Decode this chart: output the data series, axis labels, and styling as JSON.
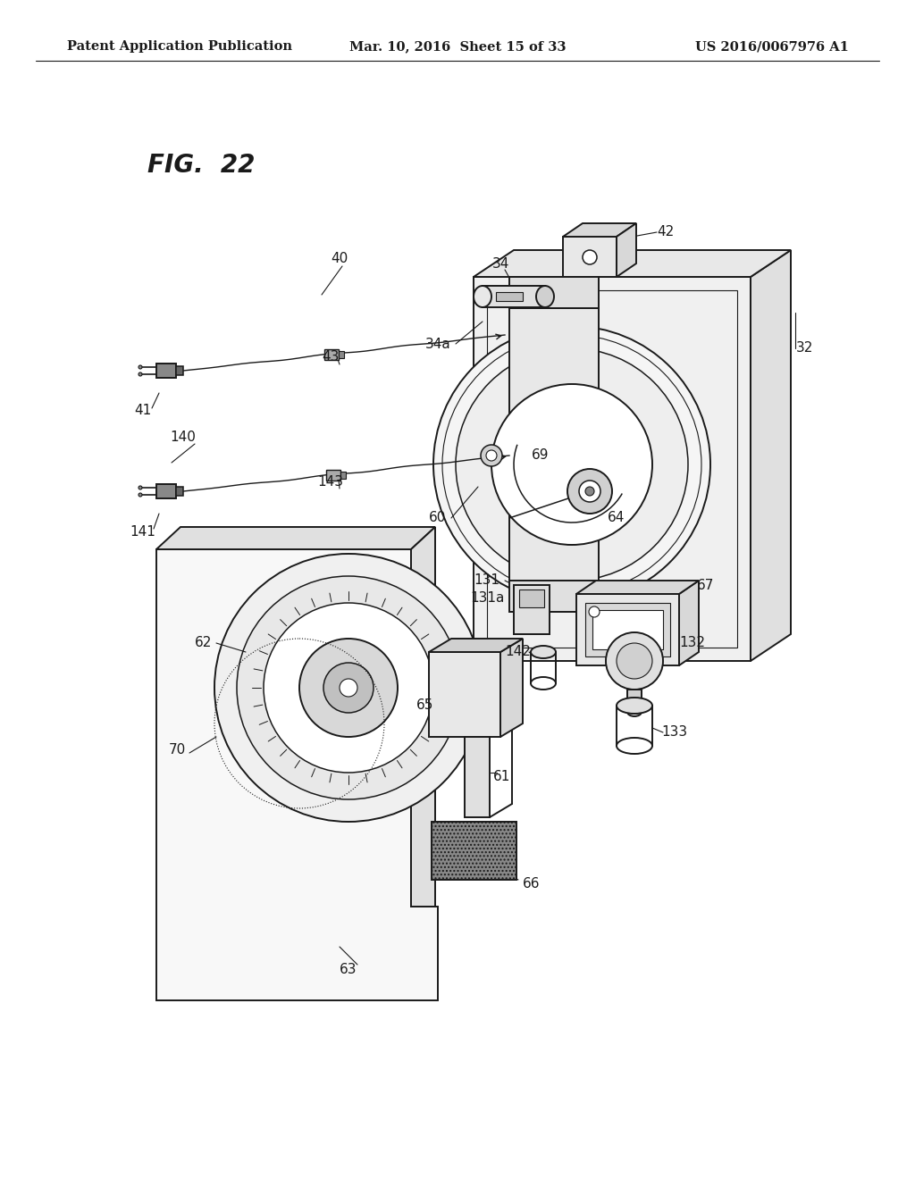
{
  "background_color": "#ffffff",
  "header_left": "Patent Application Publication",
  "header_center": "Mar. 10, 2016  Sheet 15 of 33",
  "header_right": "US 2016/0067976 A1",
  "figure_label": "FIG.  22",
  "header_fontsize": 10.5,
  "figure_label_fontsize": 20,
  "line_color": "#1a1a1a",
  "lw_main": 1.4,
  "lw_thin": 0.8,
  "lw_med": 1.1
}
